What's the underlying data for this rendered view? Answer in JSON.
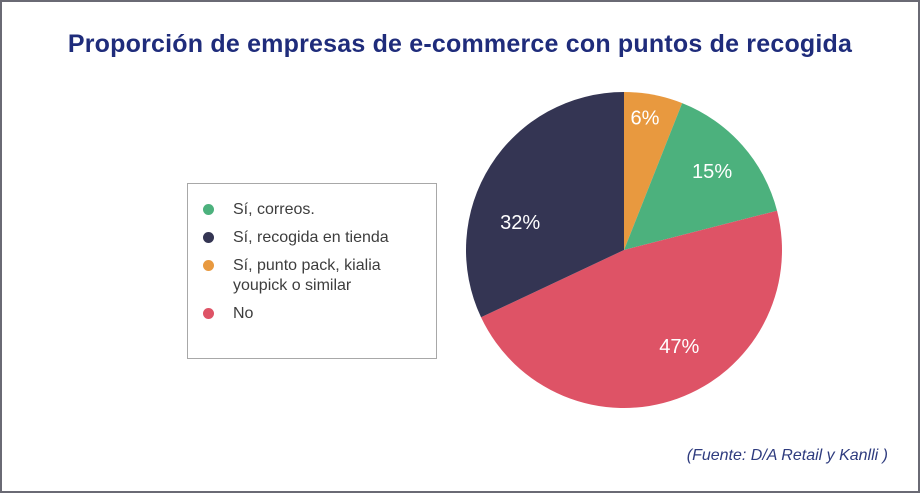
{
  "frame": {
    "border_color": "#6a6a74",
    "background": "#ffffff"
  },
  "chart_data": {
    "type": "pie",
    "title": "Proporción de empresas de e-commerce con puntos de recogida",
    "title_color": "#1f2c7b",
    "start_angle_deg": 0,
    "direction": "clockwise",
    "label_color": "#ffffff",
    "slices": [
      {
        "label": "Sí, punto pack, kialia youpick o similar",
        "value": 6,
        "display": "6%",
        "color": "#e8993f",
        "label_angle_deg": 9,
        "label_r": 0.85
      },
      {
        "label": "Sí, correos.",
        "value": 15,
        "display": "15%",
        "color": "#4cb17d",
        "label_angle_deg": 48,
        "label_r": 0.75
      },
      {
        "label": "No",
        "value": 47,
        "display": "47%",
        "color": "#de5366",
        "label_angle_deg": 150,
        "label_r": 0.7
      },
      {
        "label": "Sí, recogida en tienda",
        "value": 32,
        "display": "32%",
        "color": "#343553",
        "label_angle_deg": 285,
        "label_r": 0.68
      }
    ],
    "legend": {
      "position": "left",
      "border_color": "#a8a8a8",
      "text_color": "#3d3d3d",
      "items": [
        {
          "label": "Sí, correos.",
          "color": "#4cb17d"
        },
        {
          "label": "Sí, recogida en tienda",
          "color": "#343553"
        },
        {
          "label": "Sí, punto pack, kialia youpick o similar",
          "color": "#e8993f"
        },
        {
          "label": "No",
          "color": "#de5366"
        }
      ]
    }
  },
  "footer": {
    "source": "(Fuente: D/A Retail y Kanlli )",
    "color": "#2e3b7e"
  }
}
